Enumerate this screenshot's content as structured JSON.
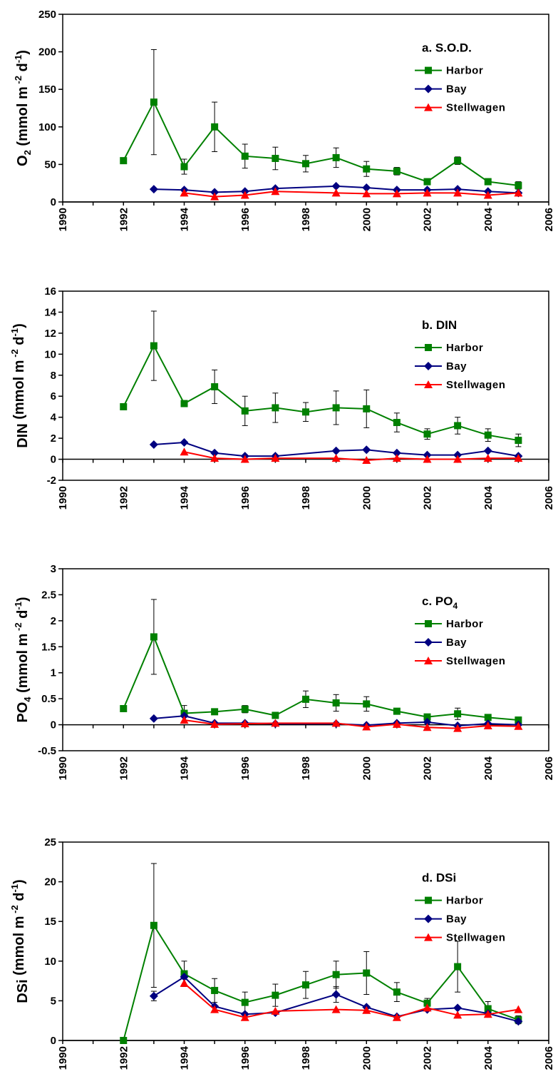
{
  "colors": {
    "Harbor": "#008000",
    "Bay": "#000080",
    "Stellwagen": "#ff0000"
  },
  "markers": {
    "Harbor": "square",
    "Bay": "diamond",
    "Stellwagen": "triangle"
  },
  "chart_data": [
    {
      "type": "line",
      "title": "a. S.O.D.",
      "ylabel": {
        "base": "O",
        "sub": "2",
        "mid": " (mmol m",
        "sup1": " -2",
        "gap": " d",
        "sup2": "-1",
        "end": ")"
      },
      "xlim": [
        1990,
        2006
      ],
      "ylim": [
        0,
        250
      ],
      "yticks": [
        0,
        50,
        100,
        150,
        200,
        250
      ],
      "xticks": [
        "1990",
        "1992",
        "1994",
        "1996",
        "1998",
        "2000",
        "2002",
        "2004",
        "2006"
      ],
      "legend_position": "top-right",
      "series": [
        {
          "name": "Harbor",
          "x": [
            1992,
            1993,
            1994,
            1995,
            1996,
            1997,
            1998,
            1999,
            2000,
            2001,
            2002,
            2003,
            2004,
            2005
          ],
          "y": [
            55,
            133,
            47,
            100,
            61,
            58,
            51,
            59,
            44,
            41,
            27,
            55,
            27,
            22
          ],
          "err": [
            0,
            70,
            10,
            33,
            16,
            15,
            11,
            13,
            10,
            5,
            3,
            5,
            4,
            5
          ]
        },
        {
          "name": "Bay",
          "x": [
            1993,
            1994,
            1995,
            1996,
            1997,
            1999,
            2000,
            2001,
            2002,
            2003,
            2004,
            2005
          ],
          "y": [
            17,
            16,
            13,
            14,
            18,
            21,
            19,
            16,
            16,
            17,
            14,
            12
          ],
          "err": [
            0,
            0,
            0,
            0,
            0,
            0,
            0,
            0,
            0,
            0,
            0,
            0
          ]
        },
        {
          "name": "Stellwagen",
          "x": [
            1994,
            1995,
            1996,
            1997,
            1999,
            2000,
            2001,
            2002,
            2003,
            2004,
            2005
          ],
          "y": [
            12,
            7,
            9,
            14,
            12,
            11,
            11,
            12,
            12,
            9,
            12
          ],
          "err": [
            0,
            0,
            0,
            0,
            0,
            0,
            0,
            0,
            0,
            0,
            0
          ]
        }
      ]
    },
    {
      "type": "line",
      "title": "b. DIN",
      "ylabel": {
        "base": "DIN",
        "sub": "",
        "mid": " (mmol m",
        "sup1": " -2",
        "gap": " d",
        "sup2": "-1",
        "end": ")"
      },
      "xlim": [
        1990,
        2006
      ],
      "ylim": [
        -2,
        16
      ],
      "yticks": [
        -2,
        0,
        2,
        4,
        6,
        8,
        10,
        12,
        14,
        16
      ],
      "xticks": [
        "1990",
        "1992",
        "1994",
        "1996",
        "1998",
        "2000",
        "2002",
        "2004",
        "2006"
      ],
      "legend_position": "top-right",
      "series": [
        {
          "name": "Harbor",
          "x": [
            1992,
            1993,
            1994,
            1995,
            1996,
            1997,
            1998,
            1999,
            2000,
            2001,
            2002,
            2003,
            2004,
            2005
          ],
          "y": [
            5.0,
            10.8,
            5.3,
            6.9,
            4.6,
            4.9,
            4.5,
            4.9,
            4.8,
            3.5,
            2.4,
            3.2,
            2.3,
            1.8
          ],
          "err": [
            0,
            3.3,
            0,
            1.6,
            1.4,
            1.4,
            0.9,
            1.6,
            1.8,
            0.9,
            0.5,
            0.8,
            0.6,
            0.6
          ]
        },
        {
          "name": "Bay",
          "x": [
            1993,
            1994,
            1995,
            1996,
            1997,
            1999,
            2000,
            2001,
            2002,
            2003,
            2004,
            2005
          ],
          "y": [
            1.4,
            1.6,
            0.6,
            0.3,
            0.3,
            0.8,
            0.9,
            0.6,
            0.4,
            0.4,
            0.8,
            0.3
          ],
          "err": [
            0,
            0,
            0,
            0,
            0,
            0,
            0,
            0,
            0,
            0,
            0,
            0
          ]
        },
        {
          "name": "Stellwagen",
          "x": [
            1994,
            1995,
            1996,
            1997,
            1999,
            2000,
            2001,
            2002,
            2003,
            2004,
            2005
          ],
          "y": [
            0.7,
            0.1,
            0.0,
            0.1,
            0.1,
            -0.1,
            0.1,
            0.0,
            0.0,
            0.1,
            0.1
          ],
          "err": [
            0,
            0,
            0,
            0,
            0,
            0,
            0,
            0,
            0,
            0,
            0
          ]
        }
      ]
    },
    {
      "type": "line",
      "title": "c. PO",
      "title_sub": "4",
      "ylabel": {
        "base": "PO",
        "sub": "4",
        "mid": " (mmol m",
        "sup1": " -2",
        "gap": " d",
        "sup2": "-1",
        "end": ")"
      },
      "xlim": [
        1990,
        2006
      ],
      "ylim": [
        -0.5,
        3
      ],
      "yticks": [
        -0.5,
        0,
        0.5,
        1,
        1.5,
        2,
        2.5,
        3
      ],
      "ytick_labels": [
        "-0.5",
        "0",
        "0.5",
        "1",
        "1.5",
        "2",
        "2.5",
        "3"
      ],
      "xticks": [
        "1990",
        "1992",
        "1994",
        "1996",
        "1998",
        "2000",
        "2002",
        "2004",
        "2006"
      ],
      "legend_position": "top-right",
      "series": [
        {
          "name": "Harbor",
          "x": [
            1992,
            1993,
            1994,
            1995,
            1996,
            1997,
            1998,
            1999,
            2000,
            2001,
            2002,
            2003,
            2004,
            2005
          ],
          "y": [
            0.31,
            1.69,
            0.22,
            0.25,
            0.3,
            0.18,
            0.49,
            0.42,
            0.4,
            0.26,
            0.15,
            0.21,
            0.14,
            0.09
          ],
          "err": [
            0,
            0.72,
            0.15,
            0,
            0.07,
            0.05,
            0.16,
            0.16,
            0.14,
            0.05,
            0.04,
            0.11,
            0.05,
            0.04
          ]
        },
        {
          "name": "Bay",
          "x": [
            1993,
            1994,
            1995,
            1996,
            1997,
            1999,
            2000,
            2001,
            2002,
            2003,
            2004,
            2005
          ],
          "y": [
            0.12,
            0.17,
            0.03,
            0.03,
            0.02,
            0.02,
            -0.01,
            0.03,
            0.05,
            -0.02,
            0.02,
            0.0
          ],
          "err": [
            0,
            0,
            0,
            0,
            0,
            0,
            0,
            0,
            0,
            0,
            0,
            0
          ]
        },
        {
          "name": "Stellwagen",
          "x": [
            1994,
            1995,
            1996,
            1997,
            1999,
            2000,
            2001,
            2002,
            2003,
            2004,
            2005
          ],
          "y": [
            0.09,
            0.01,
            0.02,
            0.03,
            0.03,
            -0.04,
            0.01,
            -0.05,
            -0.07,
            -0.02,
            -0.03
          ],
          "err": [
            0,
            0,
            0,
            0,
            0,
            0,
            0,
            0,
            0,
            0,
            0
          ]
        }
      ]
    },
    {
      "type": "line",
      "title": "d. DSi",
      "ylabel": {
        "base": "DSi",
        "sub": "",
        "mid": " (mmol m",
        "sup1": " -2",
        "gap": " d",
        "sup2": "-1",
        "end": ")"
      },
      "xlim": [
        1990,
        2006
      ],
      "ylim": [
        0,
        25
      ],
      "yticks": [
        0,
        5,
        10,
        15,
        20,
        25
      ],
      "xticks": [
        "1990",
        "1992",
        "1994",
        "1996",
        "1998",
        "2000",
        "2002",
        "2004",
        "2006"
      ],
      "legend_position": "top-right",
      "series": [
        {
          "name": "Harbor",
          "x": [
            1992,
            1993,
            1994,
            1995,
            1996,
            1997,
            1998,
            1999,
            2000,
            2001,
            2002,
            2003,
            2004,
            2005
          ],
          "y": [
            0.0,
            14.5,
            8.4,
            6.3,
            4.8,
            5.7,
            7.0,
            8.3,
            8.5,
            6.1,
            4.7,
            9.3,
            4.0,
            2.6
          ],
          "err": [
            0,
            7.8,
            1.6,
            1.5,
            1.3,
            1.4,
            1.7,
            1.7,
            2.7,
            1.2,
            0.6,
            3.2,
            0.9,
            0.5
          ]
        },
        {
          "name": "Bay",
          "x": [
            1993,
            1994,
            1995,
            1996,
            1997,
            1999,
            2000,
            2001,
            2002,
            2003,
            2004,
            2005
          ],
          "y": [
            5.6,
            8.0,
            4.3,
            3.3,
            3.5,
            5.8,
            4.2,
            3.0,
            3.9,
            4.1,
            3.4,
            2.4
          ],
          "err": [
            0.6,
            0,
            0,
            0,
            0,
            1.0,
            0,
            0,
            0,
            0,
            0,
            0
          ]
        },
        {
          "name": "Stellwagen",
          "x": [
            1994,
            1995,
            1996,
            1997,
            1999,
            2000,
            2001,
            2002,
            2003,
            2004,
            2005
          ],
          "y": [
            7.2,
            3.9,
            2.9,
            3.7,
            3.9,
            3.8,
            2.9,
            4.1,
            3.2,
            3.3,
            3.9
          ],
          "err": [
            0,
            0,
            0,
            0,
            0,
            0,
            0,
            0,
            0,
            0,
            0
          ]
        }
      ]
    }
  ]
}
